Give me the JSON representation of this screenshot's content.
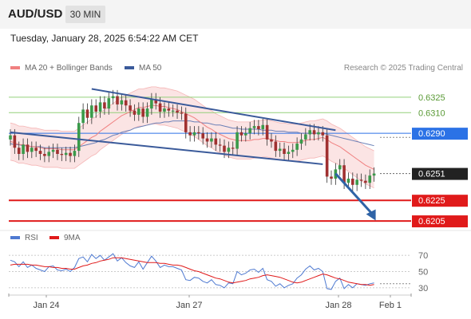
{
  "header": {
    "symbol": "AUD/USD",
    "timeframe": "30 MIN",
    "timestamp": "Tuesday, January 28, 2025 6:54:22 AM CET"
  },
  "legend": {
    "ma20_label": "MA 20 + Bollinger Bands",
    "ma50_label": "MA 50",
    "credit": "Research © 2025 Trading Central",
    "rsi_label": "RSI",
    "rsi_ma_label": "9MA"
  },
  "colors": {
    "ma20": "#f08080",
    "ma50": "#6a7fb6",
    "band_fill": "#fbe1e1",
    "candle_up": "#3a9a4a",
    "candle_down": "#a03030",
    "resistance": "#93d07a",
    "pivot": "#2b72e6",
    "support": "#e01a1a",
    "current": "#222222",
    "channel": "#3a5a9a",
    "arrow": "#2f63a6",
    "rsi": "#4f7ad1",
    "rsi_ma": "#e01a1a"
  },
  "chart_data": [
    {
      "type": "candlestick",
      "title": "AUD/USD",
      "timeframe": "30 MIN",
      "x_labels": [
        "Jan 24",
        "Jan 27",
        "Jan 28",
        "Feb 1"
      ],
      "ylim": [
        0.6195,
        0.6345
      ],
      "levels": [
        {
          "value": 0.6325,
          "label": "0.6325",
          "kind": "resistance"
        },
        {
          "value": 0.631,
          "label": "0.6310",
          "kind": "resistance"
        },
        {
          "value": 0.629,
          "label": "0.6290",
          "kind": "pivot"
        },
        {
          "value": 0.6251,
          "label": "0.6251",
          "kind": "current"
        },
        {
          "value": 0.6225,
          "label": "0.6225",
          "kind": "support"
        },
        {
          "value": 0.6205,
          "label": "0.6205",
          "kind": "support"
        }
      ],
      "close": [
        0.6288,
        0.6276,
        0.627,
        0.6279,
        0.6272,
        0.6276,
        0.6273,
        0.627,
        0.6268,
        0.6272,
        0.6274,
        0.627,
        0.6269,
        0.6271,
        0.6268,
        0.6273,
        0.63,
        0.6313,
        0.6305,
        0.6317,
        0.6311,
        0.632,
        0.6314,
        0.6324,
        0.6326,
        0.6318,
        0.6322,
        0.6317,
        0.6312,
        0.6308,
        0.6314,
        0.6306,
        0.6314,
        0.6323,
        0.6319,
        0.6311,
        0.6314,
        0.6312,
        0.6312,
        0.631,
        0.6309,
        0.6291,
        0.6288,
        0.6291,
        0.629,
        0.6285,
        0.6282,
        0.6285,
        0.6279,
        0.6278,
        0.6272,
        0.6276,
        0.6275,
        0.6291,
        0.6288,
        0.629,
        0.6295,
        0.6297,
        0.6294,
        0.6298,
        0.6284,
        0.6282,
        0.6273,
        0.6275,
        0.627,
        0.6272,
        0.6274,
        0.628,
        0.6284,
        0.6289,
        0.6293,
        0.6289,
        0.6291,
        0.6288,
        0.6248,
        0.6246,
        0.6255,
        0.6259,
        0.6242,
        0.6246,
        0.624,
        0.6245,
        0.6244,
        0.6242,
        0.6249,
        0.6251
      ],
      "ma20": [
        0.6282,
        0.6281,
        0.6279,
        0.6279,
        0.6278,
        0.6277,
        0.6277,
        0.6276,
        0.6275,
        0.6275,
        0.6275,
        0.6275,
        0.6274,
        0.6274,
        0.6274,
        0.6274,
        0.6277,
        0.628,
        0.6283,
        0.6286,
        0.6288,
        0.6292,
        0.6295,
        0.6298,
        0.6301,
        0.6304,
        0.6307,
        0.6309,
        0.6311,
        0.6313,
        0.6315,
        0.6315,
        0.6316,
        0.6317,
        0.6317,
        0.6316,
        0.6316,
        0.6315,
        0.6314,
        0.6313,
        0.6311,
        0.6309,
        0.6307,
        0.6305,
        0.6302,
        0.6299,
        0.6296,
        0.6294,
        0.6291,
        0.6289,
        0.6287,
        0.6285,
        0.6284,
        0.6283,
        0.6283,
        0.6283,
        0.6283,
        0.6284,
        0.6284,
        0.6285,
        0.6285,
        0.6284,
        0.6283,
        0.6282,
        0.6282,
        0.6281,
        0.6281,
        0.6281,
        0.6282,
        0.6283,
        0.6284,
        0.6284,
        0.6285,
        0.6286,
        0.6284,
        0.6281,
        0.6279,
        0.6277,
        0.6274,
        0.6271,
        0.6268,
        0.6265,
        0.6262,
        0.6259,
        0.6257,
        0.6255
      ],
      "ma50": [
        0.628,
        0.6279,
        0.6279,
        0.6278,
        0.6278,
        0.6277,
        0.6277,
        0.6277,
        0.6276,
        0.6276,
        0.6276,
        0.6276,
        0.6276,
        0.6276,
        0.6276,
        0.6276,
        0.6277,
        0.6278,
        0.6279,
        0.628,
        0.6281,
        0.6283,
        0.6284,
        0.6286,
        0.6288,
        0.6289,
        0.6291,
        0.6292,
        0.6293,
        0.6295,
        0.6296,
        0.6297,
        0.6298,
        0.6299,
        0.63,
        0.63,
        0.6301,
        0.6301,
        0.6302,
        0.6302,
        0.6302,
        0.6302,
        0.6302,
        0.6301,
        0.6301,
        0.63,
        0.63,
        0.6299,
        0.6298,
        0.6298,
        0.6297,
        0.6296,
        0.6295,
        0.6295,
        0.6294,
        0.6294,
        0.6294,
        0.6294,
        0.6294,
        0.6293,
        0.6293,
        0.6293,
        0.6292,
        0.6292,
        0.6292,
        0.6291,
        0.6291,
        0.6291,
        0.629,
        0.629,
        0.629,
        0.629,
        0.629,
        0.629,
        0.6289,
        0.6288,
        0.6287,
        0.6286,
        0.6285,
        0.6284,
        0.6283,
        0.6282,
        0.6281,
        0.628,
        0.6279,
        0.6278
      ],
      "channel": [
        {
          "from": [
            0,
            0.6291
          ],
          "to": [
            73,
            0.626
          ]
        },
        {
          "from": [
            19,
            0.6333
          ],
          "to": [
            76,
            0.6293
          ]
        }
      ],
      "projection": {
        "from": [
          76,
          0.6251
        ],
        "to": [
          85,
          0.6207
        ]
      }
    },
    {
      "type": "line",
      "title": "RSI",
      "ylim": [
        25,
        78
      ],
      "yticks": [
        70,
        50,
        30
      ],
      "series": [
        {
          "name": "RSI",
          "values": [
            64,
            62,
            56,
            62,
            55,
            58,
            54,
            52,
            50,
            56,
            57,
            52,
            51,
            53,
            50,
            55,
            66,
            68,
            62,
            71,
            66,
            70,
            64,
            68,
            72,
            63,
            67,
            61,
            57,
            55,
            62,
            53,
            61,
            69,
            63,
            55,
            58,
            56,
            56,
            54,
            52,
            40,
            39,
            43,
            42,
            38,
            36,
            40,
            34,
            33,
            30,
            36,
            35,
            50,
            46,
            48,
            52,
            53,
            49,
            54,
            40,
            38,
            32,
            35,
            30,
            33,
            35,
            42,
            46,
            53,
            57,
            52,
            54,
            50,
            29,
            28,
            38,
            42,
            29,
            34,
            30,
            35,
            34,
            33,
            35,
            36
          ]
        },
        {
          "name": "9MA",
          "values": [
            58,
            59,
            59,
            59,
            59,
            58,
            58,
            57,
            56,
            56,
            55,
            55,
            54,
            54,
            53,
            53,
            55,
            57,
            58,
            60,
            61,
            63,
            64,
            65,
            67,
            67,
            67,
            66,
            65,
            64,
            63,
            62,
            61,
            61,
            61,
            60,
            60,
            59,
            58,
            58,
            57,
            55,
            53,
            51,
            50,
            48,
            46,
            44,
            42,
            41,
            39,
            37,
            36,
            37,
            38,
            39,
            41,
            42,
            43,
            45,
            46,
            45,
            44,
            43,
            41,
            39,
            37,
            36,
            37,
            39,
            41,
            43,
            45,
            47,
            46,
            44,
            42,
            41,
            39,
            37,
            36,
            35,
            34,
            34,
            33,
            34
          ]
        }
      ]
    }
  ]
}
